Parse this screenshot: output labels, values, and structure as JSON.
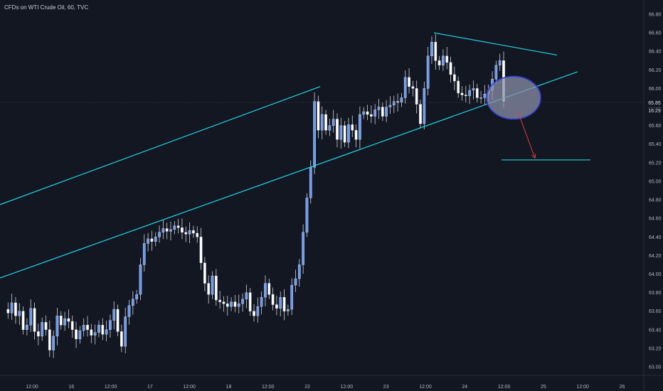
{
  "header": {
    "title": "CFDs on WTI Crude Oil, 60, TVC"
  },
  "price_scale": {
    "current_price": "65.85",
    "countdown": "16:29"
  },
  "colors": {
    "background": "#131722",
    "bull_body": "#6b9cf7",
    "bear_body": "#ffffff",
    "wick": "#d1d4dc",
    "trendline": "#22d3e6",
    "target_arrow": "#e23b3b",
    "ellipse_fill": "#8a8fa8",
    "ellipse_stroke": "#2f3fd6"
  },
  "chart_data": {
    "type": "candlestick",
    "title": "CFDs on WTI Crude Oil, 60, TVC",
    "ylim": [
      62.9,
      66.9
    ],
    "y_ticks": [
      63.0,
      63.2,
      63.4,
      63.6,
      63.8,
      64.0,
      64.2,
      64.4,
      64.6,
      64.8,
      65.0,
      65.2,
      65.4,
      65.6,
      65.8,
      66.0,
      66.2,
      66.4,
      66.6,
      66.8
    ],
    "x_ticks": [
      "12:00",
      "16",
      "12:00",
      "17",
      "12:00",
      "18",
      "12:00",
      "22",
      "12:00",
      "23",
      "12:00",
      "24",
      "12:00",
      "25",
      "12:00",
      "26"
    ],
    "candles": [
      63.62,
      63.58,
      63.69,
      63.55,
      63.6,
      63.4,
      63.45,
      63.63,
      63.38,
      63.33,
      63.48,
      63.4,
      63.18,
      63.33,
      63.55,
      63.45,
      63.52,
      63.49,
      63.4,
      63.3,
      63.39,
      63.45,
      63.4,
      63.34,
      63.37,
      63.45,
      63.35,
      63.4,
      63.5,
      63.62,
      63.38,
      63.22,
      63.54,
      63.66,
      63.73,
      63.78,
      64.1,
      64.33,
      64.38,
      64.35,
      64.4,
      64.45,
      64.49,
      64.46,
      64.48,
      64.52,
      64.5,
      64.45,
      64.43,
      64.47,
      64.44,
      64.4,
      64.12,
      63.9,
      63.78,
      63.98,
      63.72,
      63.7,
      63.68,
      63.65,
      63.7,
      63.65,
      63.68,
      63.73,
      63.8,
      63.6,
      63.55,
      63.65,
      63.75,
      63.9,
      63.78,
      63.67,
      63.63,
      63.75,
      63.6,
      63.62,
      63.88,
      63.95,
      64.1,
      64.45,
      64.82,
      65.15,
      65.86,
      65.55,
      65.72,
      65.55,
      65.6,
      65.67,
      65.45,
      65.6,
      65.42,
      65.61,
      65.55,
      65.45,
      65.72,
      65.75,
      65.72,
      65.7,
      65.77,
      65.8,
      65.7,
      65.8,
      65.82,
      65.86,
      65.85,
      65.9,
      66.12,
      66.02,
      66.0,
      65.83,
      65.62,
      66.0,
      66.35,
      66.5,
      66.3,
      66.25,
      66.35,
      66.28,
      66.15,
      66.08,
      65.95,
      65.93,
      65.92,
      65.98,
      66.0,
      65.9,
      65.9,
      65.94,
      65.98,
      66.1,
      66.25,
      66.3,
      65.86
    ],
    "annotations": {
      "channel_upper": [
        [
          -10,
          64.72
        ],
        [
          450,
          66.02
        ]
      ],
      "channel_lower": [
        [
          -10,
          63.93
        ],
        [
          812,
          66.18
        ]
      ],
      "resistance": [
        [
          610,
          66.6
        ],
        [
          783,
          66.36
        ]
      ],
      "target_level": [
        [
          705,
          65.23
        ],
        [
          830,
          65.23
        ]
      ],
      "ellipse": {
        "cx": 722,
        "cy": 65.9,
        "rx": 38,
        "ry": 0.23
      },
      "arrow": [
        [
          728,
          65.75
        ],
        [
          752,
          65.25
        ]
      ]
    }
  }
}
